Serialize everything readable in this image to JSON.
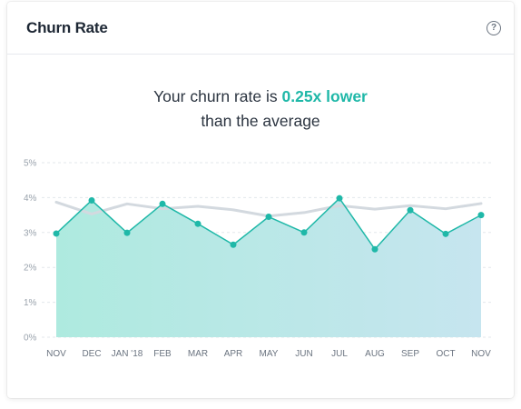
{
  "card": {
    "title": "Churn Rate",
    "help_icon": "question-circle-icon",
    "help_glyph": "?"
  },
  "headline": {
    "prefix": "Your churn rate is ",
    "highlight": "0.25x lower",
    "suffix": "than the average",
    "accent_color": "#1fb8a8"
  },
  "chart_data": {
    "type": "line",
    "categories": [
      "NOV",
      "DEC",
      "JAN '18",
      "FEB",
      "MAR",
      "APR",
      "MAY",
      "JUN",
      "JUL",
      "AUG",
      "SEP",
      "OCT",
      "NOV"
    ],
    "y_ticks": [
      "0%",
      "1%",
      "2%",
      "3%",
      "4%",
      "5%"
    ],
    "ylim": [
      0,
      5
    ],
    "grid": true,
    "series": [
      {
        "style": "area-with-points",
        "color": "#1fb8a8",
        "values": [
          2.97,
          3.92,
          2.99,
          3.82,
          3.25,
          2.65,
          3.45,
          3.0,
          3.98,
          2.52,
          3.64,
          2.96,
          3.5
        ]
      },
      {
        "style": "line",
        "color": "#d3d9df",
        "values": [
          3.87,
          3.53,
          3.82,
          3.68,
          3.75,
          3.65,
          3.47,
          3.57,
          3.77,
          3.67,
          3.77,
          3.68,
          3.83
        ]
      }
    ]
  }
}
